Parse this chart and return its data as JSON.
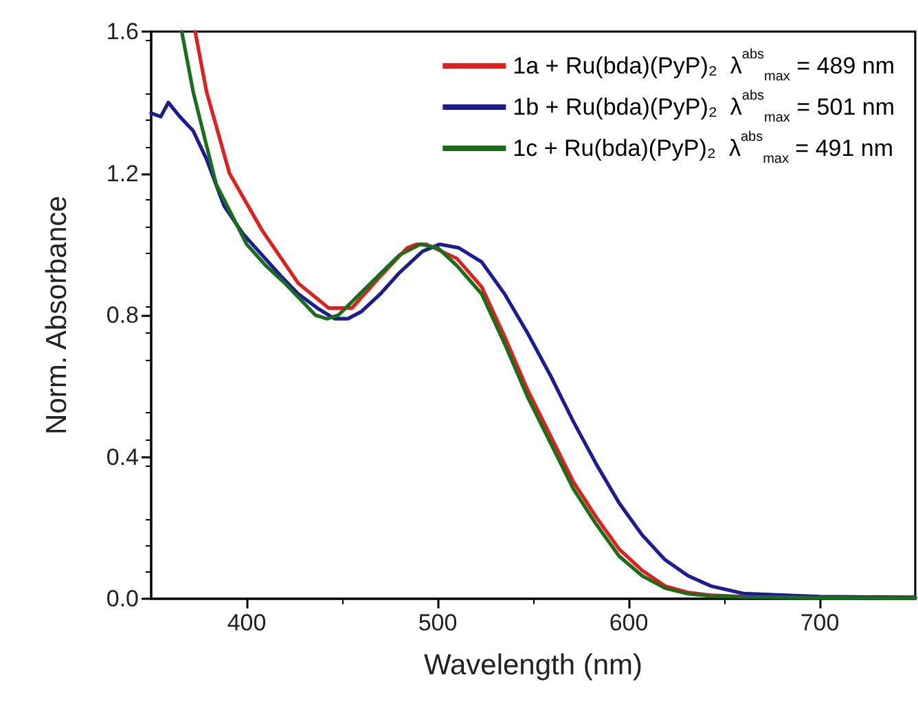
{
  "chart_data": {
    "type": "line",
    "xlabel": "Wavelength (nm)",
    "ylabel": "Norm. Absorbance",
    "xlim": [
      350,
      750
    ],
    "xticks": [
      400,
      500,
      600,
      700
    ],
    "ylim": [
      0,
      1.6
    ],
    "yticks": [
      {
        "value": 0,
        "label": "0.0"
      },
      0.4,
      0.8,
      1.2,
      1.6
    ],
    "grid": false,
    "legend": "top right",
    "marker": "none",
    "line_style": "solid",
    "series": [
      {
        "name": "1a + Ru(bda)(PyP)₂  λ$^{abs}$$_{max}$ = 489 nm",
        "color": "#e0201c",
        "x": [
          373,
          379,
          391,
          408,
          427,
          443,
          455,
          470,
          484,
          489,
          494,
          510,
          523,
          535,
          547,
          559,
          571,
          583,
          595,
          607,
          619,
          631,
          643,
          660,
          700,
          750
        ],
        "values": [
          1.6,
          1.43,
          1.2,
          1.04,
          0.89,
          0.82,
          0.82,
          0.91,
          0.99,
          1.0,
          1.0,
          0.96,
          0.88,
          0.74,
          0.59,
          0.46,
          0.33,
          0.23,
          0.14,
          0.08,
          0.036,
          0.018,
          0.01,
          0.006,
          0.004,
          0.003
        ]
      },
      {
        "name": "1b + Ru(bda)(PyP)₂  λ$^{abs}$$_{max}$ = 501 nm",
        "color": "#1c1c96",
        "x": [
          350,
          355,
          359,
          365,
          372,
          379,
          388,
          398,
          408,
          418,
          427,
          437,
          446,
          453,
          460,
          470,
          480,
          492,
          501,
          511,
          523,
          535,
          547,
          559,
          571,
          583,
          595,
          607,
          619,
          631,
          643,
          660,
          700,
          750
        ],
        "values": [
          1.37,
          1.36,
          1.4,
          1.36,
          1.32,
          1.24,
          1.11,
          1.03,
          0.97,
          0.91,
          0.86,
          0.82,
          0.79,
          0.79,
          0.81,
          0.86,
          0.92,
          0.98,
          1.0,
          0.99,
          0.95,
          0.86,
          0.75,
          0.63,
          0.5,
          0.38,
          0.27,
          0.18,
          0.11,
          0.065,
          0.036,
          0.015,
          0.006,
          0.004
        ]
      },
      {
        "name": "1c + Ru(bda)(PyP)₂  λ$^{abs}$$_{max}$ = 491 nm",
        "color": "#1a6e1a",
        "x": [
          366,
          372,
          384,
          400,
          410,
          420,
          436,
          442,
          448,
          463,
          480,
          491,
          500,
          510,
          523,
          535,
          547,
          559,
          571,
          583,
          595,
          607,
          619,
          631,
          643,
          660,
          700,
          750
        ],
        "values": [
          1.6,
          1.43,
          1.17,
          1.0,
          0.94,
          0.89,
          0.8,
          0.79,
          0.8,
          0.88,
          0.97,
          1.0,
          0.99,
          0.94,
          0.86,
          0.72,
          0.57,
          0.44,
          0.31,
          0.21,
          0.12,
          0.065,
          0.03,
          0.014,
          0.008,
          0.005,
          0.003,
          0.002
        ]
      }
    ]
  }
}
